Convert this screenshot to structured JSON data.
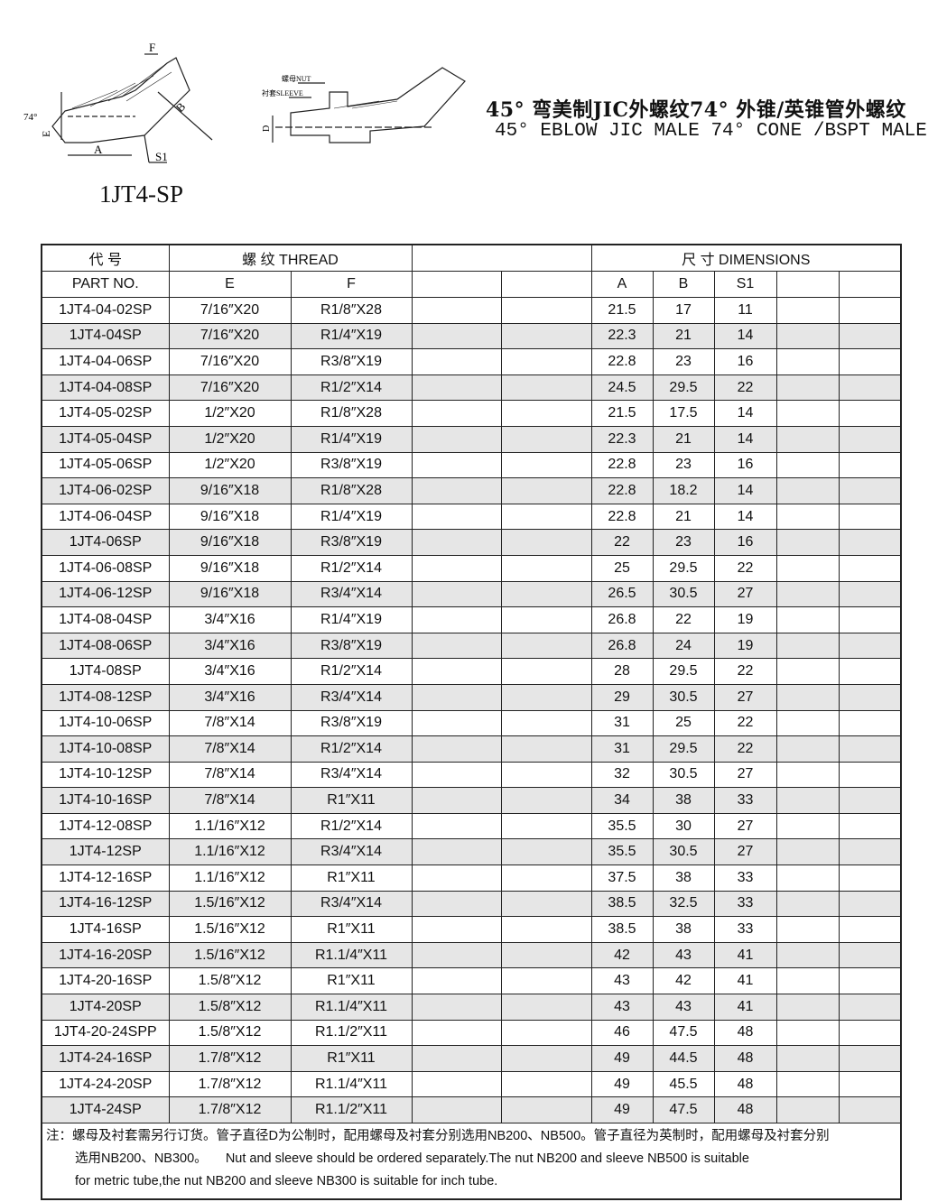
{
  "header": {
    "title_cn": "45° 弯美制JIC外螺纹74° 外锥/英锥管外螺纹",
    "title_en": "45° EBLOW JIC MALE 74° CONE /BSPT MALE",
    "model": "1JT4-SP"
  },
  "drawing": {
    "labels": {
      "f": "F",
      "b": "B",
      "e": "E",
      "a": "A",
      "s1": "S1",
      "angle": "74°",
      "nut": "螺母NUT",
      "sleeve": "衬套SLEEVE",
      "d": "D"
    }
  },
  "table": {
    "headers": {
      "code_cn": "代 号",
      "part_no": "PART  NO.",
      "thread": "螺  纹   THREAD",
      "dimensions": "尺  寸    DIMENSIONS",
      "e": "E",
      "f": "F",
      "a": "A",
      "b": "B",
      "s1": "S1"
    },
    "rows": [
      [
        "1JT4-04-02SP",
        "7/16″X20",
        "R1/8″X28",
        "21.5",
        "17",
        "11"
      ],
      [
        "1JT4-04SP",
        "7/16″X20",
        "R1/4″X19",
        "22.3",
        "21",
        "14"
      ],
      [
        "1JT4-04-06SP",
        "7/16″X20",
        "R3/8″X19",
        "22.8",
        "23",
        "16"
      ],
      [
        "1JT4-04-08SP",
        "7/16″X20",
        "R1/2″X14",
        "24.5",
        "29.5",
        "22"
      ],
      [
        "1JT4-05-02SP",
        "1/2″X20",
        "R1/8″X28",
        "21.5",
        "17.5",
        "14"
      ],
      [
        "1JT4-05-04SP",
        "1/2″X20",
        "R1/4″X19",
        "22.3",
        "21",
        "14"
      ],
      [
        "1JT4-05-06SP",
        "1/2″X20",
        "R3/8″X19",
        "22.8",
        "23",
        "16"
      ],
      [
        "1JT4-06-02SP",
        "9/16″X18",
        "R1/8″X28",
        "22.8",
        "18.2",
        "14"
      ],
      [
        "1JT4-06-04SP",
        "9/16″X18",
        "R1/4″X19",
        "22.8",
        "21",
        "14"
      ],
      [
        "1JT4-06SP",
        "9/16″X18",
        "R3/8″X19",
        "22",
        "23",
        "16"
      ],
      [
        "1JT4-06-08SP",
        "9/16″X18",
        "R1/2″X14",
        "25",
        "29.5",
        "22"
      ],
      [
        "1JT4-06-12SP",
        "9/16″X18",
        "R3/4″X14",
        "26.5",
        "30.5",
        "27"
      ],
      [
        "1JT4-08-04SP",
        "3/4″X16",
        "R1/4″X19",
        "26.8",
        "22",
        "19"
      ],
      [
        "1JT4-08-06SP",
        "3/4″X16",
        "R3/8″X19",
        "26.8",
        "24",
        "19"
      ],
      [
        "1JT4-08SP",
        "3/4″X16",
        "R1/2″X14",
        "28",
        "29.5",
        "22"
      ],
      [
        "1JT4-08-12SP",
        "3/4″X16",
        "R3/4″X14",
        "29",
        "30.5",
        "27"
      ],
      [
        "1JT4-10-06SP",
        "7/8″X14",
        "R3/8″X19",
        "31",
        "25",
        "22"
      ],
      [
        "1JT4-10-08SP",
        "7/8″X14",
        "R1/2″X14",
        "31",
        "29.5",
        "22"
      ],
      [
        "1JT4-10-12SP",
        "7/8″X14",
        "R3/4″X14",
        "32",
        "30.5",
        "27"
      ],
      [
        "1JT4-10-16SP",
        "7/8″X14",
        "R1″X11",
        "34",
        "38",
        "33"
      ],
      [
        "1JT4-12-08SP",
        "1.1/16″X12",
        "R1/2″X14",
        "35.5",
        "30",
        "27"
      ],
      [
        "1JT4-12SP",
        "1.1/16″X12",
        "R3/4″X14",
        "35.5",
        "30.5",
        "27"
      ],
      [
        "1JT4-12-16SP",
        "1.1/16″X12",
        "R1″X11",
        "37.5",
        "38",
        "33"
      ],
      [
        "1JT4-16-12SP",
        "1.5/16″X12",
        "R3/4″X14",
        "38.5",
        "32.5",
        "33"
      ],
      [
        "1JT4-16SP",
        "1.5/16″X12",
        "R1″X11",
        "38.5",
        "38",
        "33"
      ],
      [
        "1JT4-16-20SP",
        "1.5/16″X12",
        "R1.1/4″X11",
        "42",
        "43",
        "41"
      ],
      [
        "1JT4-20-16SP",
        "1.5/8″X12",
        "R1″X11",
        "43",
        "42",
        "41"
      ],
      [
        "1JT4-20SP",
        "1.5/8″X12",
        "R1.1/4″X11",
        "43",
        "43",
        "41"
      ],
      [
        "1JT4-20-24SPP",
        "1.5/8″X12",
        "R1.1/2″X11",
        "46",
        "47.5",
        "48"
      ],
      [
        "1JT4-24-16SP",
        "1.7/8″X12",
        "R1″X11",
        "49",
        "44.5",
        "48"
      ],
      [
        "1JT4-24-20SP",
        "1.7/8″X12",
        "R1.1/4″X11",
        "49",
        "45.5",
        "48"
      ],
      [
        "1JT4-24SP",
        "1.7/8″X12",
        "R1.1/2″X11",
        "49",
        "47.5",
        "48"
      ]
    ],
    "row_shading": "#e6e6e6"
  },
  "note": {
    "line1": "注：螺母及衬套需另行订货。管子直径D为公制时，配用螺母及衬套分别选用NB200、NB500。管子直径为英制时，配用螺母及衬套分别",
    "line2": "选用NB200、NB300。     Nut and sleeve should be ordered separately.The nut NB200 and sleeve NB500 is suitable",
    "line3": "for metric tube,the nut NB200 and sleeve NB300 is suitable for inch tube."
  }
}
